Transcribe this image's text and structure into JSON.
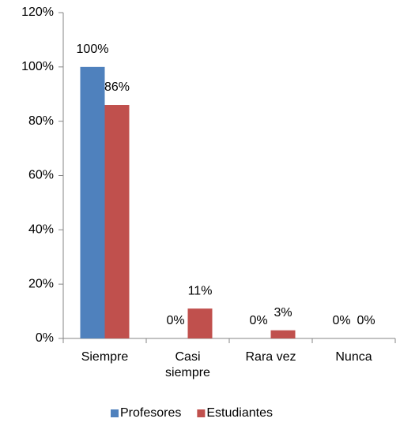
{
  "chart_data": {
    "type": "bar",
    "categories": [
      "Siempre",
      "Casi siempre",
      "Rara vez",
      "Nunca"
    ],
    "series": [
      {
        "name": "Profesores",
        "color": "#4f81bd",
        "values": [
          100,
          0,
          0,
          0
        ],
        "value_labels": [
          "100%",
          "0%",
          "0%",
          "0%"
        ]
      },
      {
        "name": "Estudiantes",
        "color": "#c0504d",
        "values": [
          86,
          11,
          3,
          0
        ],
        "value_labels": [
          "86%",
          "11%",
          "3%",
          "0%"
        ]
      }
    ],
    "ylim": [
      0,
      120
    ],
    "yticks": [
      {
        "value": 0,
        "label": "0%"
      },
      {
        "value": 20,
        "label": "20%"
      },
      {
        "value": 40,
        "label": "40%"
      },
      {
        "value": 60,
        "label": "60%"
      },
      {
        "value": 80,
        "label": "80%"
      },
      {
        "value": 100,
        "label": "100%"
      },
      {
        "value": 120,
        "label": "120%"
      }
    ],
    "grid": false,
    "legend": "bottom"
  }
}
